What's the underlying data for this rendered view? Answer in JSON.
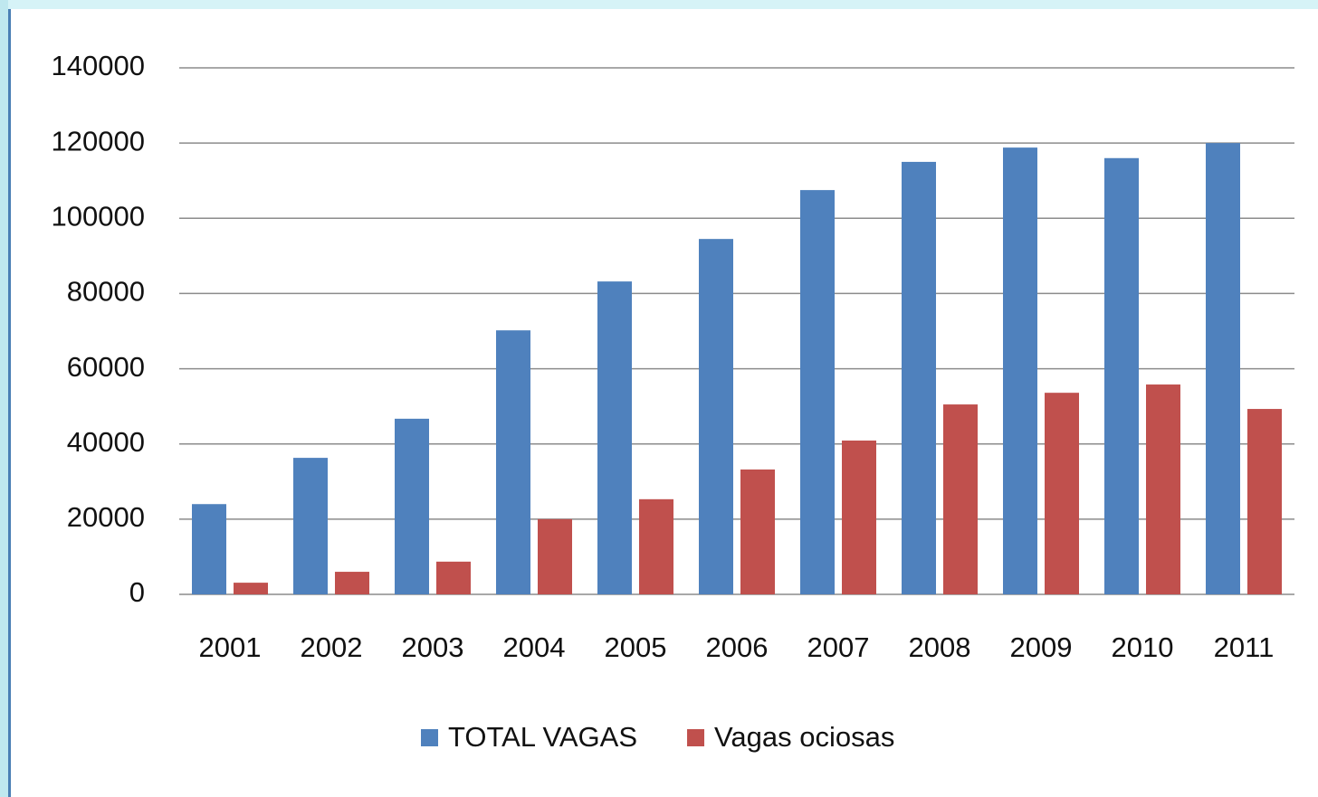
{
  "chart_data": {
    "type": "bar",
    "categories": [
      "2001",
      "2002",
      "2003",
      "2004",
      "2005",
      "2006",
      "2007",
      "2008",
      "2009",
      "2010",
      "2011"
    ],
    "series": [
      {
        "name": "TOTAL VAGAS",
        "color": "#4f81bd",
        "values": [
          24000,
          36300,
          46700,
          70200,
          83200,
          94500,
          107500,
          115000,
          118800,
          116000,
          120000
        ]
      },
      {
        "name": "Vagas ociosas",
        "color": "#c0504d",
        "values": [
          3100,
          6000,
          8700,
          20000,
          25300,
          33200,
          40900,
          50500,
          53600,
          55800,
          49300
        ]
      }
    ],
    "ylim": [
      0,
      140000
    ],
    "yticks": [
      0,
      20000,
      40000,
      60000,
      80000,
      100000,
      120000,
      140000
    ],
    "grid": true,
    "legend": "bottom"
  }
}
